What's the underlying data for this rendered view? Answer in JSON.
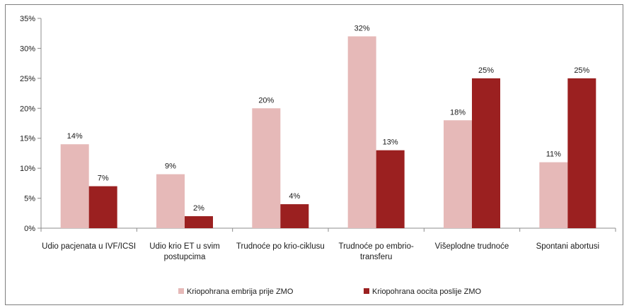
{
  "chart_data": {
    "type": "bar",
    "categories": [
      "Udio pacjenata u IVF/ICSI",
      "Udio krio ET u svim postupcima",
      "Trudnoće po krio-ciklusu",
      "Trudnoće po embrio-transferu",
      "Višeplodne trudnoće",
      "Spontani abortusi"
    ],
    "category_label_lines": [
      [
        "Udio pacjenata u IVF/ICSI"
      ],
      [
        "Udio krio ET u svim",
        "postupcima"
      ],
      [
        "Trudnoće po krio-ciklusu"
      ],
      [
        "Trudnoće po embrio-",
        "transferu"
      ],
      [
        "Višeplodne trudnoće"
      ],
      [
        "Spontani abortusi"
      ]
    ],
    "series": [
      {
        "name": "Kriopohrana embrija prije ZMO",
        "color": "#e6b9b8",
        "values": [
          14,
          9,
          20,
          32,
          18,
          11
        ],
        "labels": [
          "14%",
          "9%",
          "20%",
          "32%",
          "18%",
          "11%"
        ]
      },
      {
        "name": "Kriopohrana oocita poslije ZMO",
        "color": "#9b2020",
        "values": [
          7,
          2,
          4,
          13,
          25,
          25
        ],
        "labels": [
          "7%",
          "2%",
          "4%",
          "13%",
          "25%",
          "25%"
        ]
      }
    ],
    "y_ticks": [
      0,
      5,
      10,
      15,
      20,
      25,
      30,
      35
    ],
    "y_tick_labels": [
      "0%",
      "5%",
      "10%",
      "15%",
      "20%",
      "25%",
      "30%",
      "35%"
    ],
    "ylim": [
      0,
      35
    ],
    "grid": false,
    "legend_position": "bottom"
  }
}
